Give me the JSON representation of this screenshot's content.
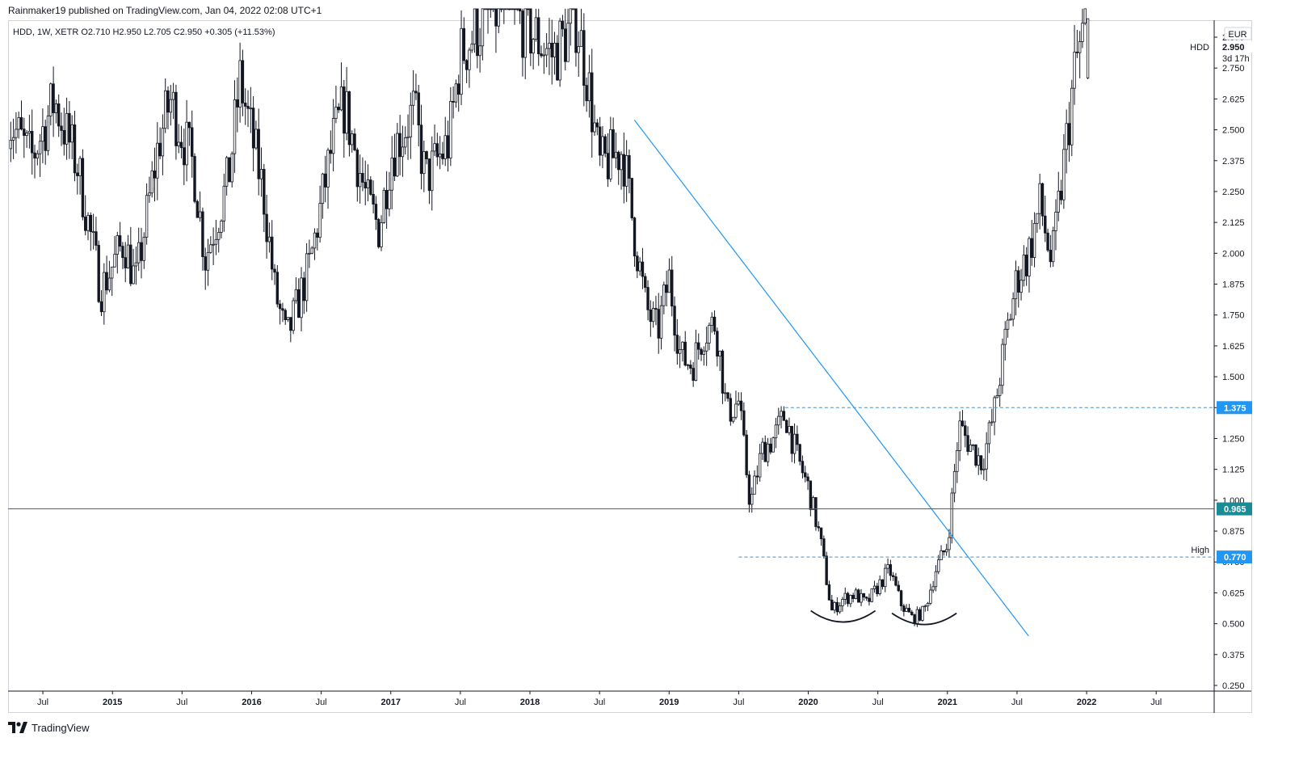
{
  "header": {
    "publisher": "Rainmaker19 published on TradingView.com, Jan 04, 2022 02:08 UTC+1",
    "legend": "HDD, 1W, XETR  O2.710  H2.950  L2.705  C2.950  +0.305 (+11.53%)"
  },
  "footer": {
    "brand": "TradingView"
  },
  "colors": {
    "candle": "#131722",
    "trendline": "#2196f3",
    "support": "#0a7f8e",
    "resistance": "#4a8fc8",
    "label_bg": "#2196f3",
    "support_label_bg": "#1a8c96",
    "price_badge_bg": "#131722"
  },
  "chart_data": {
    "type": "candlestick",
    "symbol": "HDD",
    "interval": "1W",
    "exchange": "XETR",
    "currency": "EUR",
    "last": {
      "open": 2.71,
      "high": 2.95,
      "low": 2.705,
      "close": 2.95,
      "change": 0.305,
      "change_pct": 11.53
    },
    "last_price_label": "2.950",
    "countdown": "3d 17h",
    "x_ticks": [
      "Jul",
      "2015",
      "Jul",
      "2016",
      "Jul",
      "2017",
      "Jul",
      "2018",
      "Jul",
      "2019",
      "Jul",
      "2020",
      "Jul",
      "2021",
      "Jul",
      "2022",
      "Jul"
    ],
    "x_tick_dates": [
      "2014-07",
      "2015-01",
      "2015-07",
      "2016-01",
      "2016-07",
      "2017-01",
      "2017-07",
      "2018-01",
      "2018-07",
      "2019-01",
      "2019-07",
      "2020-01",
      "2020-07",
      "2021-01",
      "2021-07",
      "2022-01",
      "2022-07"
    ],
    "y_ticks": [
      "2.875",
      "2.750",
      "2.625",
      "2.500",
      "2.375",
      "2.250",
      "2.125",
      "2.000",
      "1.875",
      "1.750",
      "1.625",
      "1.500",
      "1.375",
      "1.250",
      "1.125",
      "1.000",
      "0.875",
      "0.750",
      "0.625",
      "0.500",
      "0.375",
      "0.250"
    ],
    "ylim": [
      0.25,
      3.0
    ],
    "xlim": [
      "2014-04",
      "2022-12"
    ],
    "closes": [
      [
        "2014-04",
        2.55
      ],
      [
        "2014-06",
        2.38
      ],
      [
        "2014-08",
        2.62
      ],
      [
        "2014-10",
        2.35
      ],
      [
        "2014-12",
        1.85
      ],
      [
        "2015-02",
        2.05
      ],
      [
        "2015-03",
        1.88
      ],
      [
        "2015-05",
        2.45
      ],
      [
        "2015-06",
        2.62
      ],
      [
        "2015-08",
        2.35
      ],
      [
        "2015-09",
        1.98
      ],
      [
        "2015-11",
        2.3
      ],
      [
        "2015-12",
        2.7
      ],
      [
        "2016-02",
        2.25
      ],
      [
        "2016-03",
        1.85
      ],
      [
        "2016-04",
        1.65
      ],
      [
        "2016-06",
        1.95
      ],
      [
        "2016-08",
        2.45
      ],
      [
        "2016-09",
        2.6
      ],
      [
        "2016-11",
        2.2
      ],
      [
        "2016-12",
        2.1
      ],
      [
        "2017-01",
        2.4
      ],
      [
        "2017-03",
        2.58
      ],
      [
        "2017-04",
        2.3
      ],
      [
        "2017-06",
        2.45
      ],
      [
        "2017-07",
        2.8
      ],
      [
        "2017-09",
        2.95
      ],
      [
        "2017-11",
        3.0
      ],
      [
        "2017-12",
        2.95
      ],
      [
        "2018-02",
        2.85
      ],
      [
        "2018-03",
        2.8
      ],
      [
        "2018-05",
        2.95
      ],
      [
        "2018-06",
        2.7
      ],
      [
        "2018-07",
        2.35
      ],
      [
        "2018-09",
        2.42
      ],
      [
        "2018-10",
        2.08
      ],
      [
        "2018-11",
        1.78
      ],
      [
        "2018-12",
        1.68
      ],
      [
        "2019-01",
        1.9
      ],
      [
        "2019-02",
        1.58
      ],
      [
        "2019-03",
        1.55
      ],
      [
        "2019-04",
        1.68
      ],
      [
        "2019-05",
        1.72
      ],
      [
        "2019-06",
        1.35
      ],
      [
        "2019-07",
        1.4
      ],
      [
        "2019-08",
        0.98
      ],
      [
        "2019-09",
        1.2
      ],
      [
        "2019-10",
        1.25
      ],
      [
        "2019-11",
        1.35
      ],
      [
        "2019-12",
        1.18
      ],
      [
        "2020-01",
        1.05
      ],
      [
        "2020-02",
        0.85
      ],
      [
        "2020-03",
        0.55
      ],
      [
        "2020-04",
        0.6
      ],
      [
        "2020-05",
        0.62
      ],
      [
        "2020-06",
        0.58
      ],
      [
        "2020-07",
        0.65
      ],
      [
        "2020-08",
        0.72
      ],
      [
        "2020-09",
        0.58
      ],
      [
        "2020-10",
        0.52
      ],
      [
        "2020-11",
        0.55
      ],
      [
        "2020-12",
        0.72
      ],
      [
        "2021-01",
        0.82
      ],
      [
        "2021-02",
        1.3
      ],
      [
        "2021-03",
        1.22
      ],
      [
        "2021-04",
        1.15
      ],
      [
        "2021-05",
        1.35
      ],
      [
        "2021-06",
        1.65
      ],
      [
        "2021-07",
        1.9
      ],
      [
        "2021-08",
        2.0
      ],
      [
        "2021-09",
        2.2
      ],
      [
        "2021-10",
        1.95
      ],
      [
        "2021-11",
        2.35
      ],
      [
        "2021-12",
        2.75
      ],
      [
        "2022-01",
        2.95
      ]
    ],
    "levels": [
      {
        "name": "resistance",
        "price": 1.375,
        "label": "1.375",
        "start": "2019-11",
        "style": "dashed"
      },
      {
        "name": "support",
        "price": 0.965,
        "label": "0.965",
        "start": "2014-04",
        "style": "solid"
      },
      {
        "name": "high",
        "price": 0.77,
        "label": "0.770",
        "start": "2019-07",
        "style": "dashed",
        "tag": "High"
      }
    ],
    "trendline": {
      "start": [
        "2018-10",
        2.54
      ],
      "end": [
        "2021-08",
        0.45
      ]
    },
    "annotations": [
      {
        "type": "arc",
        "center": [
          "2020-04",
          0.51
        ]
      },
      {
        "type": "arc",
        "center": [
          "2020-11",
          0.5
        ]
      }
    ],
    "grid": false,
    "price_scale": "right"
  }
}
